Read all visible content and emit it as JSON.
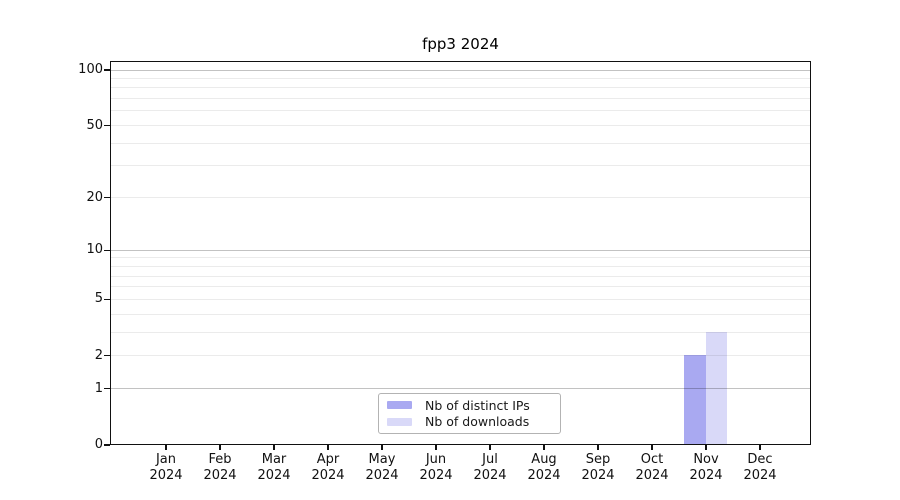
{
  "chart_data": {
    "type": "bar",
    "title": "fpp3 2024",
    "categories": [
      "Jan 2024",
      "Feb 2024",
      "Mar 2024",
      "Apr 2024",
      "May 2024",
      "Jun 2024",
      "Jul 2024",
      "Aug 2024",
      "Sep 2024",
      "Oct 2024",
      "Nov 2024",
      "Dec 2024"
    ],
    "series": [
      {
        "name": "Nb of distinct IPs",
        "color": "#a9a9f1",
        "values": [
          0,
          0,
          0,
          0,
          0,
          0,
          0,
          0,
          0,
          0,
          2,
          0
        ]
      },
      {
        "name": "Nb of downloads",
        "color": "#d9d9f8",
        "values": [
          0,
          0,
          0,
          0,
          0,
          0,
          0,
          0,
          0,
          0,
          3,
          0
        ]
      }
    ],
    "xlabel": "",
    "ylabel": "",
    "y_scale": "log1p",
    "ylim": [
      0,
      112
    ],
    "y_tick_values": [
      0,
      1,
      2,
      5,
      10,
      20,
      50,
      100
    ],
    "y_tick_labels": [
      "0",
      "1",
      "2",
      "5",
      "10",
      "20",
      "50",
      "100"
    ],
    "y_major_gridlines": [
      1,
      10,
      100
    ],
    "y_minor_gridlines": [
      2,
      3,
      4,
      5,
      6,
      7,
      8,
      9,
      20,
      30,
      40,
      50,
      60,
      70,
      80,
      90
    ],
    "grid": true,
    "legend_position": "bottom-center",
    "bar_values_nov_2024": {
      "Nb of distinct IPs": 2,
      "Nb of downloads": 3
    }
  }
}
